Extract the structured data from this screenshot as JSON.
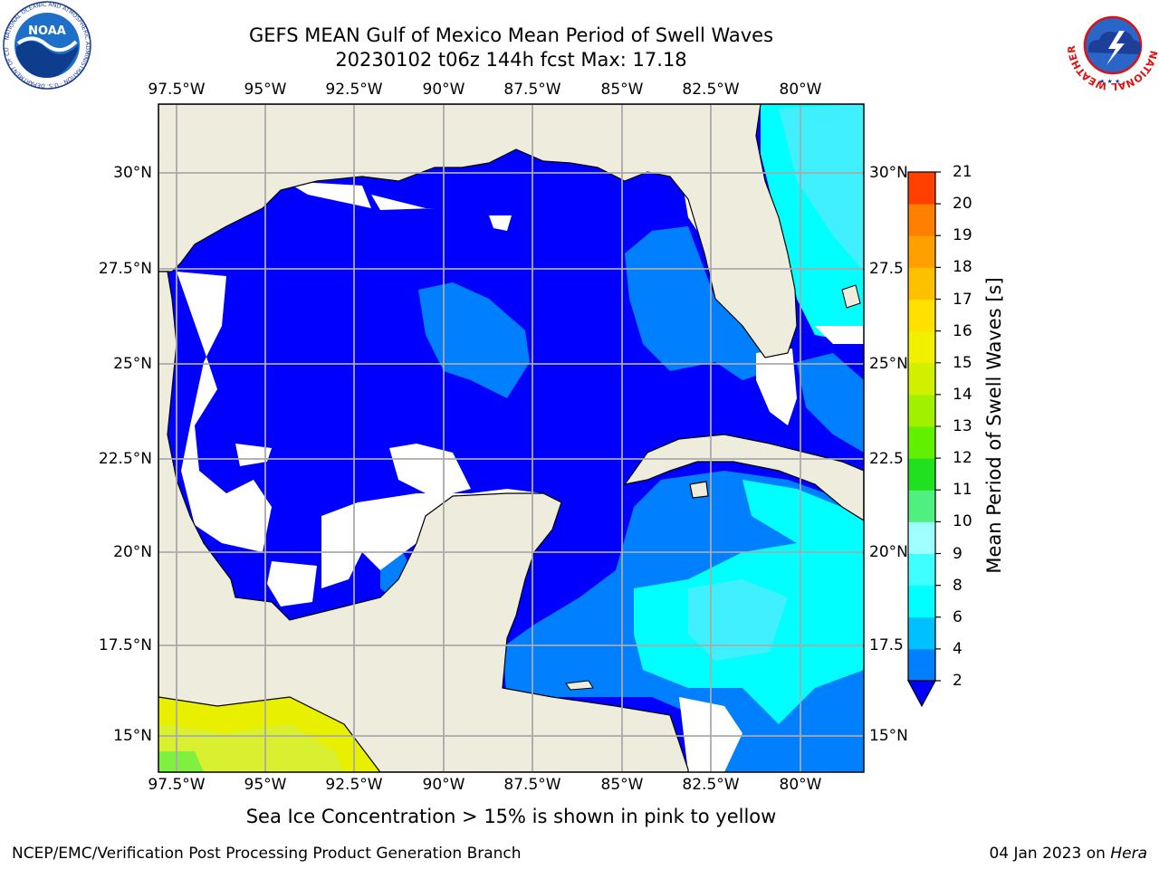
{
  "title": {
    "line1": "GEFS MEAN Gulf of Mexico Mean Period of Swell Waves",
    "line2": "20230102 t06z 144h fcst   Max: 17.18"
  },
  "map": {
    "lon_ticks": [
      "97.5°W",
      "95°W",
      "92.5°W",
      "90°W",
      "87.5°W",
      "85°W",
      "82.5°W",
      "80°W"
    ],
    "lat_ticks_left": [
      "30°N",
      "27.5°N",
      "25°N",
      "22.5°N",
      "20°N",
      "17.5°N",
      "15°N"
    ],
    "lat_ticks_right": [
      "30°N",
      "27.5",
      "25°N",
      "22.5",
      "20°N",
      "17.5",
      "15°N"
    ],
    "colors": {
      "land": "#eeecdc",
      "ocean_deep": "#0000ff",
      "ocean_mid": "#0080ff",
      "ocean_light": "#00ffff",
      "ocean_pale": "#40f0ff",
      "ice_yellow": "#e8f000",
      "ice_yellow2": "#d8f030",
      "ice_green": "#80f040",
      "grid": "#aaaaaa"
    }
  },
  "colorbar": {
    "label": "Mean Period of Swell Waves [s]",
    "ticks": [
      "2",
      "4",
      "6",
      "8",
      "9",
      "10",
      "11",
      "12",
      "13",
      "14",
      "15",
      "16",
      "17",
      "18",
      "19",
      "20",
      "21"
    ],
    "colors": [
      "#0080ff",
      "#00c0ff",
      "#00ffff",
      "#40ffff",
      "#a0ffff",
      "#50f080",
      "#20e020",
      "#60f000",
      "#a0f000",
      "#d0f000",
      "#f0f000",
      "#ffe000",
      "#ffc000",
      "#ffa000",
      "#ff8000",
      "#ff4000",
      "#ff1000",
      "#ff0000"
    ]
  },
  "logos": {
    "noaa": {
      "text": "NOAA",
      "ring_text": "NATIONAL OCEANIC AND ATMOSPHERIC ADMINISTRATION · U.S. DEPARTMENT OF COMMERCE"
    },
    "nws": {
      "ring_text": "NATIONAL WEATHER SERVICE"
    }
  },
  "caption": "Sea Ice Concentration > 15% is shown in pink to yellow",
  "footer": {
    "left": "NCEP/EMC/Verification Post Processing Product Generation Branch",
    "right_prefix": "04 Jan 2023 on ",
    "right_host": "Hera"
  }
}
